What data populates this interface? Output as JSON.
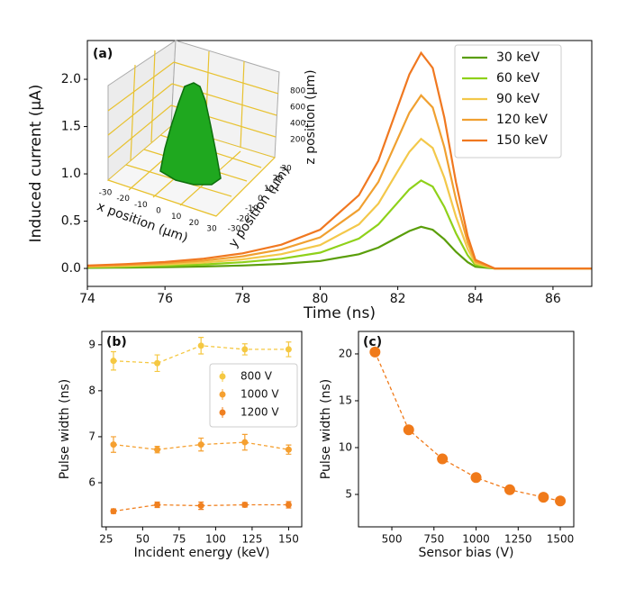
{
  "chart_data": [
    {
      "type": "line",
      "panel_label": "(a)",
      "x_label": "Time (ns)",
      "y_label": "Induced current (μA)",
      "x": [
        74,
        75,
        76,
        77,
        78,
        79,
        80,
        81,
        81.5,
        82,
        82.3,
        82.6,
        82.9,
        83.2,
        83.5,
        83.8,
        84,
        84.5,
        85,
        86,
        87
      ],
      "series": [
        {
          "name": "30 keV",
          "color": "#5a9e0a",
          "values": [
            0.006,
            0.009,
            0.013,
            0.02,
            0.031,
            0.048,
            0.079,
            0.15,
            0.22,
            0.33,
            0.396,
            0.44,
            0.409,
            0.308,
            0.176,
            0.066,
            0.018,
            0,
            0,
            0,
            0
          ]
        },
        {
          "name": "60 keV",
          "color": "#8fd11a",
          "values": [
            0.012,
            0.019,
            0.028,
            0.042,
            0.065,
            0.102,
            0.167,
            0.316,
            0.465,
            0.698,
            0.837,
            0.93,
            0.865,
            0.651,
            0.372,
            0.14,
            0.037,
            0,
            0,
            0,
            0
          ]
        },
        {
          "name": "90 keV",
          "color": "#f3c84a",
          "values": [
            0.018,
            0.027,
            0.041,
            0.062,
            0.096,
            0.151,
            0.247,
            0.466,
            0.685,
            1.028,
            1.233,
            1.37,
            1.274,
            0.959,
            0.548,
            0.206,
            0.055,
            0,
            0,
            0,
            0
          ]
        },
        {
          "name": "120 keV",
          "color": "#f0a030",
          "values": [
            0.024,
            0.037,
            0.055,
            0.082,
            0.128,
            0.201,
            0.329,
            0.622,
            0.915,
            1.373,
            1.647,
            1.83,
            1.702,
            1.281,
            0.732,
            0.275,
            0.073,
            0,
            0,
            0,
            0
          ]
        },
        {
          "name": "150 keV",
          "color": "#f07820",
          "values": [
            0.03,
            0.046,
            0.068,
            0.103,
            0.16,
            0.251,
            0.41,
            0.775,
            1.14,
            1.71,
            2.052,
            2.28,
            2.12,
            1.596,
            0.912,
            0.342,
            0.091,
            0,
            0,
            0,
            0
          ]
        }
      ],
      "xlim": [
        74,
        87
      ],
      "ylim": [
        -0.19,
        2.41
      ],
      "xticks": [
        74,
        76,
        78,
        80,
        82,
        84,
        86
      ],
      "yticks": [
        {
          "value": 0,
          "label": "0.0"
        },
        {
          "value": 0.5,
          "label": "0.5"
        },
        {
          "value": 1,
          "label": "1.0"
        },
        {
          "value": 1.5,
          "label": "1.5"
        },
        {
          "value": 2,
          "label": "2.0"
        }
      ],
      "legend": "upper right",
      "inset": {
        "x_label": "x position (μm)",
        "y_label": "y position (μm)",
        "z_label": "z position (μm)",
        "x_ticks": [
          -30,
          -20,
          -10,
          0,
          10,
          20,
          30
        ],
        "y_ticks": [
          -30,
          -20,
          -10,
          0,
          10,
          20,
          30
        ],
        "z_ticks": [
          200,
          400,
          600,
          800
        ]
      }
    },
    {
      "type": "errorbar",
      "panel_label": "(b)",
      "x_label": "Incident energy (keV)",
      "y_label": "Pulse width (ns)",
      "x": [
        30,
        60,
        90,
        120,
        150
      ],
      "series": [
        {
          "name": "800 V",
          "color": "#f5c842",
          "values": [
            8.65,
            8.6,
            8.98,
            8.9,
            8.9
          ],
          "errors": [
            0.2,
            0.18,
            0.18,
            0.12,
            0.16
          ]
        },
        {
          "name": "1000 V",
          "color": "#f5a030",
          "values": [
            6.83,
            6.72,
            6.83,
            6.88,
            6.72
          ],
          "errors": [
            0.17,
            0.07,
            0.14,
            0.17,
            0.1
          ]
        },
        {
          "name": "1200 V",
          "color": "#f08020",
          "values": [
            5.38,
            5.52,
            5.5,
            5.52,
            5.52
          ],
          "errors": [
            0.05,
            0.06,
            0.08,
            0.05,
            0.07
          ]
        }
      ],
      "xlim": [
        22,
        159
      ],
      "ylim": [
        5.04,
        9.29
      ],
      "xticks": [
        25,
        50,
        75,
        100,
        125,
        150
      ],
      "yticks": [
        6,
        7,
        8,
        9
      ],
      "legend": "upper right"
    },
    {
      "type": "line",
      "panel_label": "(c)",
      "x_label": "Sensor bias (V)",
      "y_label": "Pulse width (ns)",
      "x": [
        400,
        600,
        800,
        1000,
        1200,
        1400,
        1500
      ],
      "series": [
        {
          "color": "#f07a1a",
          "values": [
            20.2,
            11.9,
            8.8,
            6.8,
            5.5,
            4.7,
            4.3
          ]
        }
      ],
      "markers": true,
      "xlim": [
        302,
        1580
      ],
      "ylim": [
        1.54,
        22.4
      ],
      "xticks": [
        500,
        750,
        1000,
        1250,
        1500
      ],
      "yticks": [
        5,
        10,
        15,
        20
      ]
    }
  ]
}
